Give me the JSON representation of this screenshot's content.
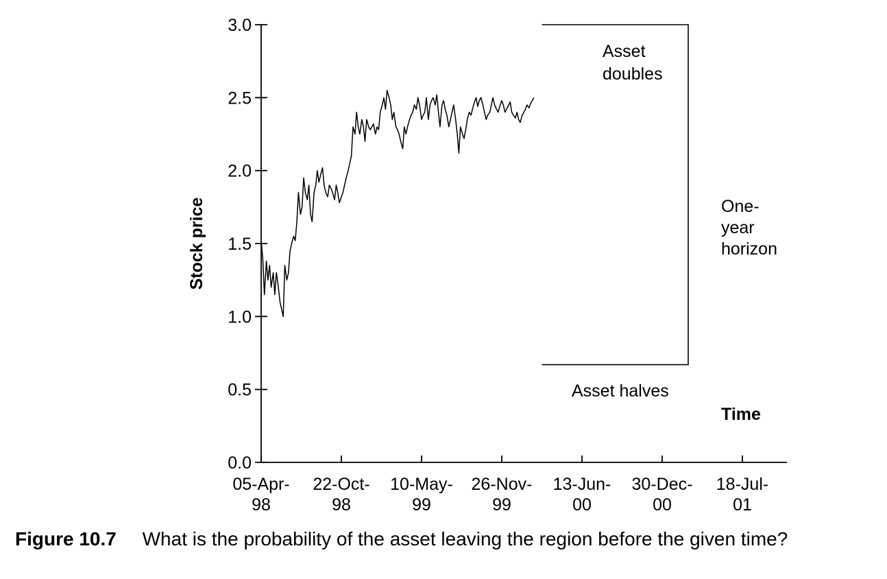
{
  "caption": {
    "figure_number": "Figure 10.7",
    "text": "What is the probability of the asset leaving the region before the given time?"
  },
  "chart_data": {
    "type": "line",
    "xlabel": "Time",
    "ylabel": "Stock price",
    "ylim": [
      0,
      3.0
    ],
    "y_ticks": [
      0.0,
      0.5,
      1.0,
      1.5,
      2.0,
      2.5,
      3.0
    ],
    "y_tick_labels": [
      "0.0",
      "0.5",
      "1.0",
      "1.5",
      "2.0",
      "2.5",
      "3.0"
    ],
    "x_start": "1998-04-05",
    "x_end_axis": "2001-09-15",
    "x_ticks": [
      "1998-04-05",
      "1998-10-22",
      "1999-05-10",
      "1999-11-26",
      "2000-06-13",
      "2000-12-30",
      "2001-07-18"
    ],
    "x_tick_labels": [
      [
        "05-Apr-",
        "98"
      ],
      [
        "22-Oct-",
        "98"
      ],
      [
        "10-May-",
        "99"
      ],
      [
        "26-Nov-",
        "99"
      ],
      [
        "13-Jun-",
        "00"
      ],
      [
        "30-Dec-",
        "00"
      ],
      [
        "18-Jul-",
        "01"
      ]
    ],
    "grid": false,
    "legend": "none",
    "series": [
      {
        "x": [
          "1998-04-05",
          "1998-04-09",
          "1998-04-13",
          "1998-04-18",
          "1998-04-22",
          "1998-04-26",
          "1998-04-30",
          "1998-05-05",
          "1998-05-09",
          "1998-05-13",
          "1998-05-17",
          "1998-05-22",
          "1998-05-26",
          "1998-05-30",
          "1998-06-03",
          "1998-06-08",
          "1998-06-12",
          "1998-06-16",
          "1998-06-20",
          "1998-06-25",
          "1998-06-29",
          "1998-07-03",
          "1998-07-07",
          "1998-07-12",
          "1998-07-16",
          "1998-07-20",
          "1998-07-24",
          "1998-07-29",
          "1998-08-02",
          "1998-08-06",
          "1998-08-10",
          "1998-08-15",
          "1998-08-19",
          "1998-08-23",
          "1998-08-27",
          "1998-09-01",
          "1998-09-05",
          "1998-09-09",
          "1998-09-13",
          "1998-09-18",
          "1998-09-22",
          "1998-09-26",
          "1998-09-30",
          "1998-10-05",
          "1998-10-09",
          "1998-10-13",
          "1998-10-17",
          "1998-10-22",
          "1998-10-26",
          "1998-10-30",
          "1998-11-03",
          "1998-11-08",
          "1998-11-12",
          "1998-11-16",
          "1998-11-20",
          "1998-11-25",
          "1998-11-29",
          "1998-12-03",
          "1998-12-07",
          "1998-12-12",
          "1998-12-16",
          "1998-12-20",
          "1998-12-24",
          "1998-12-29",
          "1999-01-02",
          "1999-01-06",
          "1999-01-10",
          "1999-01-15",
          "1999-01-19",
          "1999-01-23",
          "1999-01-27",
          "1999-02-01",
          "1999-02-05",
          "1999-02-09",
          "1999-02-13",
          "1999-02-18",
          "1999-02-22",
          "1999-02-26",
          "1999-03-02",
          "1999-03-07",
          "1999-03-11",
          "1999-03-15",
          "1999-03-19",
          "1999-03-24",
          "1999-03-28",
          "1999-04-01",
          "1999-04-05",
          "1999-04-10",
          "1999-04-14",
          "1999-04-18",
          "1999-04-22",
          "1999-04-27",
          "1999-05-01",
          "1999-05-05",
          "1999-05-10",
          "1999-05-14",
          "1999-05-18",
          "1999-05-22",
          "1999-05-27",
          "1999-05-31",
          "1999-06-04",
          "1999-06-08",
          "1999-06-13",
          "1999-06-17",
          "1999-06-21",
          "1999-06-25",
          "1999-06-30",
          "1999-07-04",
          "1999-07-08",
          "1999-07-12",
          "1999-07-17",
          "1999-07-21",
          "1999-07-25",
          "1999-07-29",
          "1999-08-03",
          "1999-08-07",
          "1999-08-11",
          "1999-08-15",
          "1999-08-20",
          "1999-08-24",
          "1999-08-28",
          "1999-09-01",
          "1999-09-06",
          "1999-09-10",
          "1999-09-14",
          "1999-09-18",
          "1999-09-23",
          "1999-09-27",
          "1999-10-01",
          "1999-10-05",
          "1999-10-10",
          "1999-10-14",
          "1999-10-18",
          "1999-10-22",
          "1999-10-27",
          "1999-10-31",
          "1999-11-04",
          "1999-11-08",
          "1999-11-13",
          "1999-11-17",
          "1999-11-21",
          "1999-11-26",
          "1999-11-30",
          "1999-12-04",
          "1999-12-08",
          "1999-12-13",
          "1999-12-17",
          "1999-12-21",
          "1999-12-25",
          "1999-12-30",
          "2000-01-03",
          "2000-01-07",
          "2000-01-11",
          "2000-01-16",
          "2000-01-20",
          "2000-01-24",
          "2000-01-28",
          "2000-02-02",
          "2000-02-06",
          "2000-02-10",
          "2000-02-14"
        ],
        "values": [
          1.52,
          1.4,
          1.15,
          1.38,
          1.25,
          1.35,
          1.2,
          1.3,
          1.15,
          1.3,
          1.22,
          1.1,
          1.05,
          1.0,
          1.35,
          1.25,
          1.3,
          1.45,
          1.5,
          1.55,
          1.52,
          1.65,
          1.85,
          1.7,
          1.75,
          1.95,
          1.85,
          1.8,
          1.9,
          1.7,
          1.65,
          1.85,
          1.9,
          2.0,
          1.92,
          1.98,
          2.02,
          1.9,
          1.85,
          1.82,
          1.9,
          1.88,
          1.85,
          1.8,
          1.9,
          1.85,
          1.78,
          1.82,
          1.85,
          1.9,
          1.95,
          2.0,
          2.05,
          2.1,
          2.3,
          2.25,
          2.4,
          2.3,
          2.25,
          2.35,
          2.3,
          2.2,
          2.35,
          2.3,
          2.28,
          2.3,
          2.32,
          2.25,
          2.3,
          2.28,
          2.4,
          2.45,
          2.5,
          2.42,
          2.55,
          2.5,
          2.45,
          2.35,
          2.4,
          2.3,
          2.28,
          2.25,
          2.2,
          2.15,
          2.3,
          2.25,
          2.3,
          2.35,
          2.38,
          2.4,
          2.45,
          2.42,
          2.5,
          2.45,
          2.35,
          2.38,
          2.4,
          2.5,
          2.35,
          2.45,
          2.48,
          2.5,
          2.45,
          2.52,
          2.4,
          2.3,
          2.45,
          2.48,
          2.42,
          2.38,
          2.3,
          2.35,
          2.4,
          2.45,
          2.35,
          2.25,
          2.12,
          2.3,
          2.25,
          2.22,
          2.28,
          2.35,
          2.4,
          2.38,
          2.42,
          2.46,
          2.5,
          2.44,
          2.48,
          2.5,
          2.45,
          2.4,
          2.35,
          2.38,
          2.4,
          2.45,
          2.5,
          2.45,
          2.42,
          2.4,
          2.44,
          2.48,
          2.45,
          2.4,
          2.42,
          2.45,
          2.47,
          2.4,
          2.38,
          2.36,
          2.4,
          2.35,
          2.33,
          2.38,
          2.4,
          2.42,
          2.45,
          2.43,
          2.46,
          2.48,
          2.5
        ]
      }
    ],
    "annotations": {
      "upper_label": [
        "Asset",
        "doubles"
      ],
      "lower_label": "Asset halves",
      "horizon_label": [
        "One-",
        "year",
        "horizon"
      ],
      "upper_barrier": 3.0,
      "lower_barrier": 0.67,
      "region_start": "2000-03-05",
      "region_end": "2001-03-05"
    }
  }
}
